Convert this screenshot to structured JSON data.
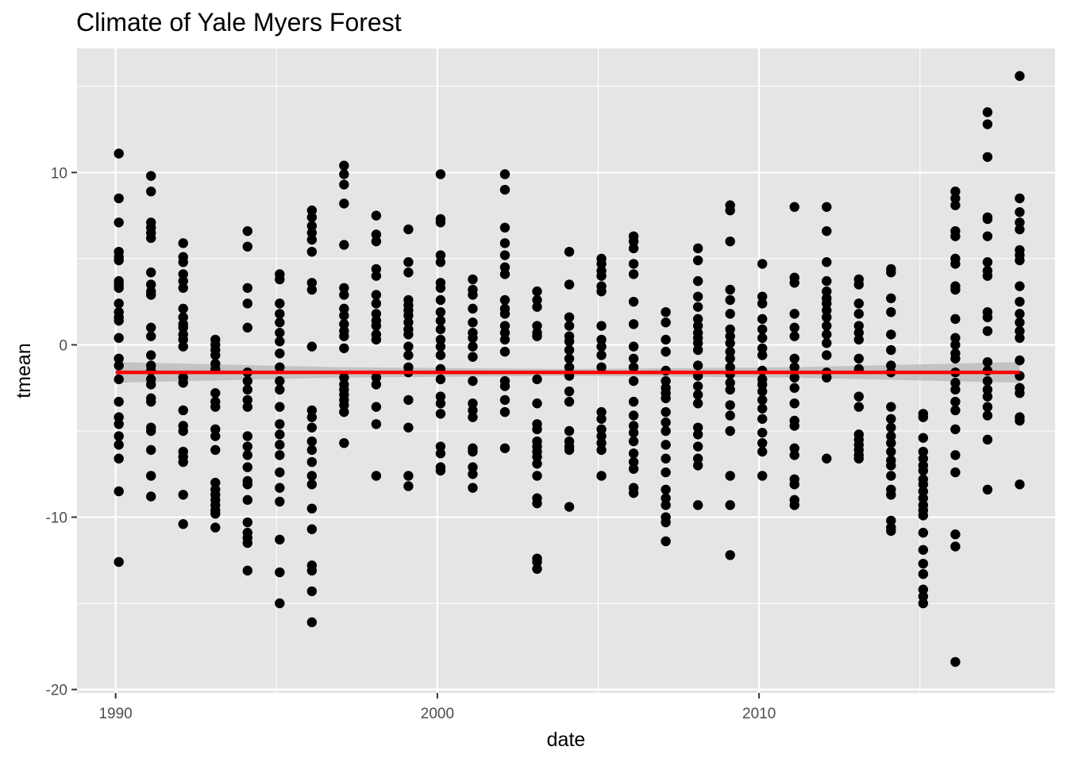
{
  "chart_data": {
    "type": "scatter",
    "title": "Climate of Yale Myers Forest",
    "xlabel": "date",
    "ylabel": "tmean",
    "x_ticks": [
      1990,
      2000,
      2010
    ],
    "y_ticks": [
      -20,
      -10,
      0,
      10
    ],
    "xlim": [
      1988.8,
      2019.2
    ],
    "ylim": [
      -20.2,
      17.2
    ],
    "grid": true,
    "colors": {
      "panel": "#e5e5e5",
      "grid": "#ffffff",
      "points": "#000000",
      "trend": "#ff0000",
      "ribbon": "#bdbdbd"
    },
    "trend": {
      "x": [
        1990.0,
        2018.1
      ],
      "y": [
        -1.6,
        -1.6
      ],
      "ribbon_x": [
        1990.0,
        1997.0,
        2004.0,
        2011.0,
        2018.1
      ],
      "ribbon_lower": [
        -2.2,
        -1.9,
        -1.8,
        -1.9,
        -2.2
      ],
      "ribbon_upper": [
        -1.0,
        -1.3,
        -1.4,
        -1.3,
        -1.0
      ]
    },
    "series": [
      {
        "x": 1990.1,
        "y": [
          11.1,
          8.5,
          7.1,
          5.4,
          5.1,
          4.9,
          3.7,
          3.5,
          3.3,
          2.4,
          1.9,
          1.6,
          1.4,
          0.4,
          -0.8,
          -1.2,
          -2.0,
          -3.3,
          -4.2,
          -4.6,
          -5.3,
          -5.8,
          -6.6,
          -8.5,
          -12.6
        ]
      },
      {
        "x": 1991.1,
        "y": [
          9.8,
          8.9,
          7.1,
          6.8,
          6.5,
          6.2,
          4.2,
          3.5,
          3.1,
          2.9,
          1.0,
          0.5,
          -0.6,
          -1.2,
          -1.5,
          -2.0,
          -2.3,
          -3.1,
          -3.3,
          -4.8,
          -5.0,
          -6.1,
          -7.6,
          -8.8
        ]
      },
      {
        "x": 1992.1,
        "y": [
          5.9,
          5.1,
          4.8,
          4.1,
          3.7,
          3.3,
          2.1,
          1.6,
          1.2,
          1.0,
          0.6,
          0.3,
          -0.1,
          -1.9,
          -2.2,
          -3.8,
          -4.7,
          -5.0,
          -6.2,
          -6.5,
          -6.8,
          -8.7,
          -10.4
        ]
      },
      {
        "x": 1993.1,
        "y": [
          0.3,
          0.0,
          -0.3,
          -0.6,
          -1.1,
          -1.4,
          -2.8,
          -3.3,
          -3.6,
          -4.9,
          -5.3,
          -6.1,
          -8.0,
          -8.4,
          -8.7,
          -9.0,
          -9.3,
          -9.6,
          -9.8,
          -10.6
        ]
      },
      {
        "x": 1994.1,
        "y": [
          6.6,
          5.7,
          3.3,
          2.4,
          1.0,
          -1.6,
          -2.1,
          -2.6,
          -3.2,
          -3.6,
          -5.3,
          -5.9,
          -6.4,
          -7.1,
          -7.9,
          -8.1,
          -9.0,
          -10.3,
          -10.9,
          -11.2,
          -11.5,
          -13.1
        ]
      },
      {
        "x": 1995.1,
        "y": [
          4.1,
          3.8,
          2.4,
          1.8,
          1.3,
          0.7,
          0.2,
          -0.5,
          -1.3,
          -2.1,
          -2.6,
          -3.6,
          -4.6,
          -5.2,
          -5.8,
          -6.4,
          -7.4,
          -8.3,
          -9.1,
          -11.3,
          -13.2,
          -15.0
        ]
      },
      {
        "x": 1996.1,
        "y": [
          7.8,
          7.4,
          6.9,
          6.5,
          6.1,
          5.4,
          3.6,
          3.2,
          -0.1,
          -3.8,
          -4.2,
          -4.8,
          -5.6,
          -6.1,
          -6.8,
          -7.6,
          -8.1,
          -9.5,
          -10.7,
          -12.8,
          -13.1,
          -14.3,
          -16.1
        ]
      },
      {
        "x": 1997.1,
        "y": [
          10.4,
          9.9,
          9.3,
          8.2,
          5.8,
          3.3,
          2.9,
          2.1,
          1.7,
          1.2,
          0.8,
          0.5,
          -0.2,
          -1.9,
          -2.3,
          -2.6,
          -2.9,
          -3.2,
          -3.5,
          -3.9,
          -5.7
        ]
      },
      {
        "x": 1998.1,
        "y": [
          7.5,
          6.4,
          6.0,
          4.4,
          4.0,
          2.9,
          2.4,
          1.8,
          1.4,
          1.1,
          0.6,
          0.3,
          -1.9,
          -2.3,
          -3.6,
          -4.6,
          -7.6
        ]
      },
      {
        "x": 1999.1,
        "y": [
          6.7,
          4.8,
          4.2,
          2.6,
          2.3,
          2.0,
          1.7,
          1.3,
          0.9,
          0.6,
          -0.1,
          -0.6,
          -1.3,
          -1.6,
          -3.2,
          -4.8,
          -7.6,
          -8.2
        ]
      },
      {
        "x": 2000.1,
        "y": [
          9.9,
          7.3,
          7.1,
          5.2,
          4.8,
          3.6,
          3.3,
          2.6,
          1.9,
          1.4,
          0.9,
          0.3,
          -0.1,
          -0.6,
          -1.4,
          -2.0,
          -3.0,
          -3.4,
          -4.0,
          -5.9,
          -6.3,
          -7.1,
          -7.3
        ]
      },
      {
        "x": 2001.1,
        "y": [
          3.8,
          3.2,
          2.9,
          2.1,
          1.3,
          0.7,
          0.4,
          -0.1,
          -0.7,
          -2.1,
          -3.4,
          -3.8,
          -4.2,
          -6.0,
          -6.2,
          -7.1,
          -7.5,
          -8.3
        ]
      },
      {
        "x": 2002.1,
        "y": [
          9.9,
          9.0,
          6.8,
          5.9,
          5.2,
          4.5,
          4.1,
          2.6,
          2.1,
          1.8,
          1.1,
          0.7,
          0.3,
          -0.4,
          -2.1,
          -2.4,
          -3.2,
          -3.9,
          -6.0
        ]
      },
      {
        "x": 2003.1,
        "y": [
          3.1,
          2.6,
          2.2,
          1.1,
          0.7,
          0.5,
          -2.0,
          -3.4,
          -4.6,
          -4.9,
          -5.6,
          -5.9,
          -6.2,
          -6.5,
          -6.9,
          -7.6,
          -8.9,
          -9.2,
          -12.4,
          -12.6,
          -13.0
        ]
      },
      {
        "x": 2004.1,
        "y": [
          5.4,
          3.5,
          1.6,
          1.1,
          0.5,
          0.2,
          -0.3,
          -0.8,
          -1.3,
          -1.8,
          -2.7,
          -3.3,
          -5.0,
          -5.6,
          -5.9,
          -6.1,
          -9.4
        ]
      },
      {
        "x": 2005.1,
        "y": [
          5.0,
          4.7,
          4.3,
          4.0,
          3.4,
          3.1,
          1.1,
          0.3,
          -0.1,
          -0.6,
          -1.3,
          -3.9,
          -4.3,
          -4.9,
          -5.3,
          -5.7,
          -6.1,
          -7.6
        ]
      },
      {
        "x": 2006.1,
        "y": [
          6.3,
          6.0,
          5.6,
          4.7,
          4.1,
          2.5,
          1.2,
          -0.1,
          -0.8,
          -1.3,
          -2.1,
          -3.3,
          -4.1,
          -4.7,
          -5.1,
          -5.6,
          -6.3,
          -6.8,
          -7.2,
          -8.3,
          -8.6
        ]
      },
      {
        "x": 2007.1,
        "y": [
          1.9,
          1.3,
          0.3,
          -0.4,
          -1.5,
          -2.1,
          -2.5,
          -2.8,
          -3.1,
          -3.9,
          -4.5,
          -5.0,
          -5.8,
          -6.6,
          -7.4,
          -8.4,
          -8.9,
          -9.3,
          -10.0,
          -10.3,
          -11.4
        ]
      },
      {
        "x": 2008.1,
        "y": [
          5.6,
          4.9,
          3.7,
          2.8,
          2.2,
          1.5,
          1.1,
          0.7,
          0.4,
          0.1,
          -0.3,
          -1.2,
          -1.8,
          -2.4,
          -2.9,
          -3.4,
          -4.8,
          -5.2,
          -5.9,
          -6.6,
          -7.0,
          -9.3
        ]
      },
      {
        "x": 2009.1,
        "y": [
          8.1,
          7.8,
          6.0,
          3.2,
          2.6,
          1.8,
          0.9,
          0.5,
          0.1,
          -0.4,
          -0.8,
          -1.3,
          -1.7,
          -2.2,
          -2.6,
          -3.5,
          -4.1,
          -5.0,
          -7.6,
          -9.3,
          -12.2
        ]
      },
      {
        "x": 2010.1,
        "y": [
          4.7,
          2.8,
          2.4,
          1.5,
          0.9,
          0.4,
          -0.2,
          -0.6,
          -1.5,
          -2.0,
          -2.3,
          -2.7,
          -3.2,
          -3.7,
          -4.3,
          -5.1,
          -5.7,
          -6.2,
          -7.6
        ]
      },
      {
        "x": 2011.1,
        "y": [
          8.0,
          3.9,
          3.6,
          1.8,
          1.0,
          0.5,
          -0.8,
          -1.3,
          -1.9,
          -2.5,
          -3.4,
          -4.4,
          -4.7,
          -6.0,
          -6.4,
          -7.8,
          -8.1,
          -9.0,
          -9.3
        ]
      },
      {
        "x": 2012.1,
        "y": [
          8.0,
          6.6,
          4.8,
          3.7,
          3.1,
          2.7,
          2.4,
          2.0,
          1.6,
          1.1,
          0.6,
          0.1,
          -0.6,
          -1.6,
          -1.9,
          -6.6
        ]
      },
      {
        "x": 2013.1,
        "y": [
          3.8,
          3.5,
          2.4,
          1.8,
          1.1,
          0.7,
          0.3,
          -0.8,
          -1.4,
          -3.0,
          -3.6,
          -5.2,
          -5.5,
          -5.8,
          -6.1,
          -6.4,
          -6.6
        ]
      },
      {
        "x": 2014.1,
        "y": [
          4.4,
          4.2,
          2.7,
          1.9,
          0.6,
          -0.3,
          -1.2,
          -1.6,
          -3.6,
          -4.3,
          -4.8,
          -5.3,
          -5.7,
          -6.2,
          -6.7,
          -7.0,
          -7.6,
          -8.4,
          -8.7,
          -10.2,
          -10.6,
          -10.8
        ]
      },
      {
        "x": 2015.1,
        "y": [
          -4.0,
          -4.2,
          -5.4,
          -6.2,
          -6.6,
          -7.0,
          -7.3,
          -7.8,
          -8.1,
          -8.5,
          -8.9,
          -9.3,
          -9.6,
          -9.9,
          -10.9,
          -11.9,
          -12.7,
          -13.3,
          -14.2,
          -14.6,
          -15.0
        ]
      },
      {
        "x": 2016.1,
        "y": [
          8.9,
          8.5,
          8.1,
          6.6,
          6.3,
          5.0,
          4.7,
          3.4,
          3.2,
          1.5,
          0.4,
          0.0,
          -0.5,
          -0.8,
          -1.6,
          -2.2,
          -2.6,
          -3.3,
          -3.8,
          -4.9,
          -6.4,
          -7.4,
          -11.0,
          -11.7,
          -18.4
        ]
      },
      {
        "x": 2017.1,
        "y": [
          13.5,
          12.8,
          10.9,
          7.4,
          7.3,
          6.3,
          4.8,
          4.3,
          4.0,
          1.9,
          1.6,
          0.8,
          -1.0,
          -1.5,
          -2.1,
          -2.6,
          -3.0,
          -3.6,
          -4.1,
          -5.5,
          -8.4
        ]
      },
      {
        "x": 2018.1,
        "y": [
          15.6,
          8.5,
          7.7,
          7.1,
          6.7,
          5.5,
          5.2,
          4.9,
          3.4,
          2.5,
          1.8,
          1.3,
          0.8,
          0.4,
          -0.9,
          -1.8,
          -2.5,
          -2.8,
          -4.2,
          -4.4,
          -8.1
        ]
      }
    ]
  }
}
